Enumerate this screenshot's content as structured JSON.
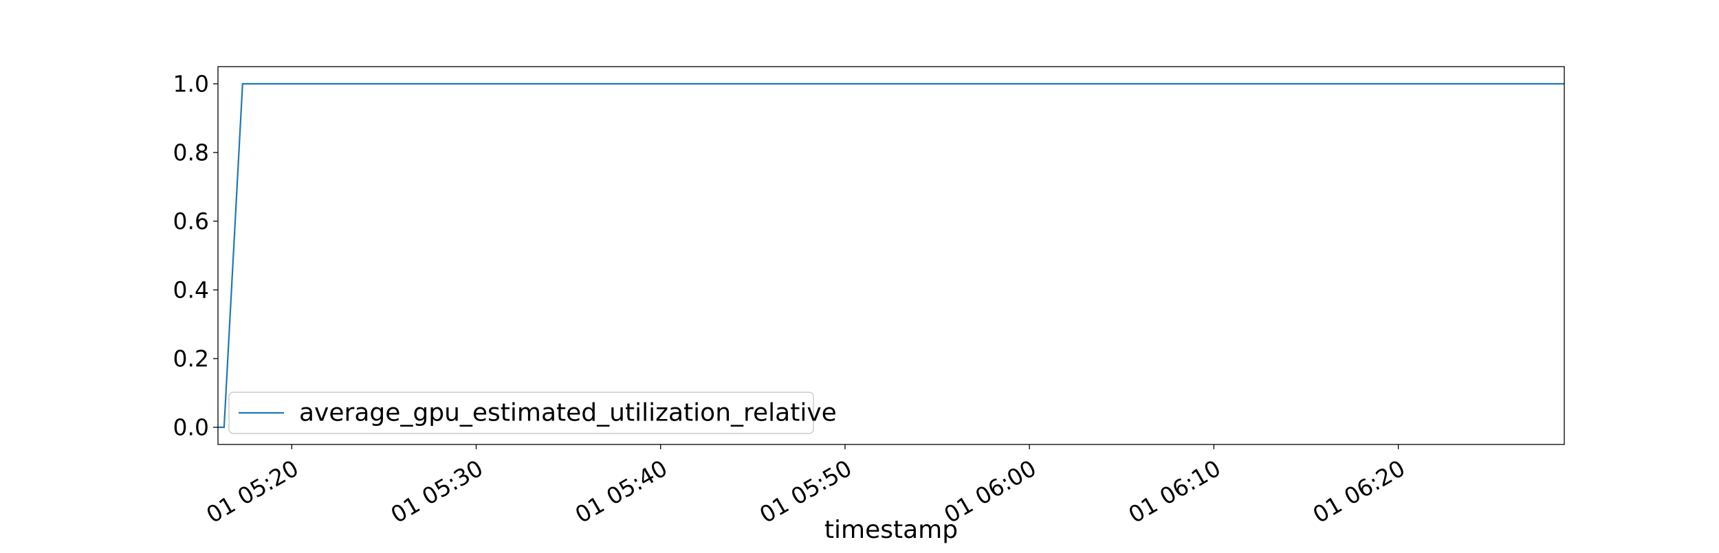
{
  "chart_data": {
    "type": "line",
    "title": "",
    "xlabel": "timestamp",
    "ylabel": "",
    "x_range": [
      "2024-01-01T05:16:00",
      "2024-01-01T06:29:00"
    ],
    "ylim": [
      -0.05,
      1.05
    ],
    "y_ticks": [
      0.0,
      0.2,
      0.4,
      0.6,
      0.8,
      1.0
    ],
    "y_tick_labels": [
      "0.0",
      "0.2",
      "0.4",
      "0.6",
      "0.8",
      "1.0"
    ],
    "x_ticks": [
      "2024-01-01T05:20:00",
      "2024-01-01T05:30:00",
      "2024-01-01T05:40:00",
      "2024-01-01T05:50:00",
      "2024-01-01T06:00:00",
      "2024-01-01T06:10:00",
      "2024-01-01T06:20:00"
    ],
    "x_tick_labels": [
      "01 05:20",
      "01 05:30",
      "01 05:40",
      "01 05:50",
      "01 06:00",
      "01 06:10",
      "01 06:20"
    ],
    "grid": false,
    "legend_position": "lower-left",
    "series": [
      {
        "name": "average_gpu_estimated_utilization_relative",
        "color": "#1f77b4",
        "x": [
          "2024-01-01T05:16:00",
          "2024-01-01T05:16:20",
          "2024-01-01T05:17:20",
          "2024-01-01T06:29:00"
        ],
        "values": [
          0.0,
          0.0,
          1.0,
          1.0
        ]
      }
    ]
  }
}
